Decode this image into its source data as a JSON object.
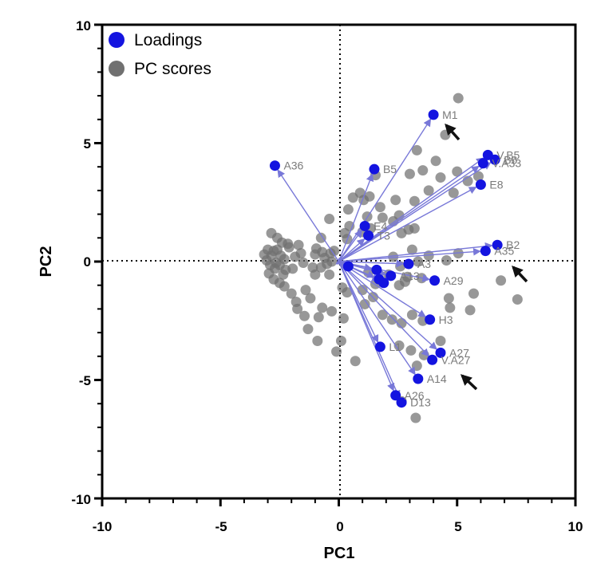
{
  "chart_data": {
    "type": "scatter",
    "title": "",
    "xlabel": "PC1",
    "ylabel": "PC2",
    "xlim": [
      -10,
      10
    ],
    "ylim": [
      -10,
      10
    ],
    "x_ticks": [
      "-10",
      "-5",
      "0",
      "5",
      "10"
    ],
    "y_ticks": [
      "10",
      "5",
      "0",
      "-5",
      "-10"
    ],
    "grid": false,
    "reference_lines": "dotted lines at x=0 and y=0",
    "legend_position": "top-left",
    "colors": {
      "loadings": "#1414e0",
      "scores": "#707070",
      "arrows": "#7878d8"
    },
    "legend": [
      {
        "name": "Loadings",
        "color": "#1414e0"
      },
      {
        "name": "PC scores",
        "color": "#707070"
      }
    ],
    "loadings": [
      {
        "label": "M1",
        "x": 4.0,
        "y": 6.2
      },
      {
        "label": "A36",
        "x": -2.7,
        "y": 4.05
      },
      {
        "label": "B5",
        "x": 1.5,
        "y": 3.9
      },
      {
        "label": "V.B5",
        "x": 6.3,
        "y": 4.5
      },
      {
        "label": "B6",
        "x": 6.6,
        "y": 4.3
      },
      {
        "label": "V.A33",
        "x": 6.1,
        "y": 4.15
      },
      {
        "label": "E8",
        "x": 6.0,
        "y": 3.25
      },
      {
        "label": "E4",
        "x": 1.1,
        "y": 1.5
      },
      {
        "label": "T3",
        "x": 1.25,
        "y": 1.1
      },
      {
        "label": "B2",
        "x": 6.7,
        "y": 0.7
      },
      {
        "label": "A35",
        "x": 6.2,
        "y": 0.45
      },
      {
        "label": "A3",
        "x": 2.95,
        "y": -0.1
      },
      {
        "label": "",
        "x": 0.4,
        "y": -0.2
      },
      {
        "label": "",
        "x": 1.6,
        "y": -0.35
      },
      {
        "label": "A13",
        "x": 2.2,
        "y": -0.6
      },
      {
        "label": "",
        "x": 1.7,
        "y": -0.75
      },
      {
        "label": "",
        "x": 1.9,
        "y": -0.9
      },
      {
        "label": "A29",
        "x": 4.05,
        "y": -0.8
      },
      {
        "label": "H3",
        "x": 3.85,
        "y": -2.45
      },
      {
        "label": "L1",
        "x": 1.75,
        "y": -3.6
      },
      {
        "label": "A27",
        "x": 4.3,
        "y": -3.85
      },
      {
        "label": "V.A27",
        "x": 3.95,
        "y": -4.15
      },
      {
        "label": "A14",
        "x": 3.35,
        "y": -4.95
      },
      {
        "label": "A26",
        "x": 2.4,
        "y": -5.65
      },
      {
        "label": "D13",
        "x": 2.65,
        "y": -5.95
      }
    ],
    "scores": [
      [
        5.05,
        6.9
      ],
      [
        4.5,
        5.35
      ],
      [
        3.3,
        4.7
      ],
      [
        4.1,
        4.25
      ],
      [
        3.55,
        3.85
      ],
      [
        3.0,
        3.7
      ],
      [
        4.3,
        3.55
      ],
      [
        5.0,
        3.8
      ],
      [
        5.9,
        3.6
      ],
      [
        5.45,
        3.4
      ],
      [
        4.85,
        2.9
      ],
      [
        3.8,
        3.0
      ],
      [
        3.2,
        2.55
      ],
      [
        2.4,
        2.6
      ],
      [
        2.55,
        1.95
      ],
      [
        1.55,
        3.65
      ],
      [
        0.9,
        2.9
      ],
      [
        1.05,
        2.6
      ],
      [
        1.3,
        2.75
      ],
      [
        1.75,
        2.3
      ],
      [
        0.6,
        2.7
      ],
      [
        0.4,
        2.2
      ],
      [
        1.85,
        1.85
      ],
      [
        1.2,
        1.9
      ],
      [
        1.35,
        1.4
      ],
      [
        2.95,
        1.35
      ],
      [
        3.2,
        1.4
      ],
      [
        2.65,
        1.2
      ],
      [
        1.0,
        1.25
      ],
      [
        0.45,
        1.5
      ],
      [
        0.25,
        1.2
      ],
      [
        0.35,
        0.95
      ],
      [
        -0.4,
        1.8
      ],
      [
        2.3,
        1.7
      ],
      [
        -0.75,
        1.0
      ],
      [
        -0.95,
        0.55
      ],
      [
        -1.0,
        0.3
      ],
      [
        -0.7,
        0.4
      ],
      [
        -0.6,
        0.15
      ],
      [
        -0.35,
        0.35
      ],
      [
        -0.2,
        0.45
      ],
      [
        -0.3,
        0.0
      ],
      [
        -0.5,
        -0.1
      ],
      [
        -0.75,
        -0.25
      ],
      [
        -1.0,
        -0.55
      ],
      [
        -1.1,
        -0.25
      ],
      [
        -0.4,
        -0.55
      ],
      [
        -1.7,
        0.7
      ],
      [
        -1.6,
        0.35
      ],
      [
        -1.85,
        0.2
      ],
      [
        -2.1,
        0.6
      ],
      [
        -1.5,
        -0.05
      ],
      [
        -1.95,
        -0.3
      ],
      [
        -2.35,
        -0.55
      ],
      [
        -2.85,
        1.2
      ],
      [
        -2.6,
        1.0
      ],
      [
        -2.4,
        0.8
      ],
      [
        -2.75,
        0.45
      ],
      [
        -2.85,
        0.25
      ],
      [
        -3.0,
        0.5
      ],
      [
        -3.05,
        0.05
      ],
      [
        -2.9,
        -0.15
      ],
      [
        -2.7,
        -0.3
      ],
      [
        -2.5,
        -0.15
      ],
      [
        -2.3,
        0.1
      ],
      [
        -2.95,
        -0.5
      ],
      [
        -2.75,
        -0.75
      ],
      [
        -2.5,
        -0.9
      ],
      [
        -2.3,
        -1.05
      ],
      [
        -2.0,
        -1.35
      ],
      [
        -1.8,
        -1.7
      ],
      [
        -1.4,
        -1.2
      ],
      [
        -1.2,
        -1.55
      ],
      [
        -1.75,
        -2.0
      ],
      [
        -1.45,
        -2.3
      ],
      [
        -0.85,
        -2.35
      ],
      [
        -1.3,
        -2.85
      ],
      [
        -0.9,
        -3.35
      ],
      [
        -0.7,
        -1.95
      ],
      [
        -0.3,
        -2.1
      ],
      [
        -2.45,
        0.25
      ],
      [
        -2.25,
        -0.35
      ],
      [
        -2.6,
        0.5
      ],
      [
        -3.15,
        0.3
      ],
      [
        -2.65,
        -0.05
      ],
      [
        -2.15,
        0.75
      ],
      [
        0.2,
        -2.4
      ],
      [
        0.1,
        -3.35
      ],
      [
        -0.1,
        -3.8
      ],
      [
        0.7,
        -4.2
      ],
      [
        0.15,
        -1.1
      ],
      [
        0.35,
        -1.3
      ],
      [
        1.0,
        -1.2
      ],
      [
        1.45,
        -1.5
      ],
      [
        1.1,
        -1.8
      ],
      [
        1.85,
        -2.25
      ],
      [
        2.25,
        -2.45
      ],
      [
        2.65,
        -2.6
      ],
      [
        3.1,
        -2.25
      ],
      [
        3.55,
        -2.5
      ],
      [
        4.3,
        -3.35
      ],
      [
        3.6,
        -3.95
      ],
      [
        3.05,
        -3.75
      ],
      [
        2.55,
        -3.55
      ],
      [
        4.65,
        -1.55
      ],
      [
        4.7,
        -1.95
      ],
      [
        5.55,
        -2.05
      ],
      [
        5.7,
        -1.35
      ],
      [
        7.55,
        -1.6
      ],
      [
        6.85,
        -0.8
      ],
      [
        3.8,
        0.25
      ],
      [
        3.1,
        0.5
      ],
      [
        4.55,
        0.05
      ],
      [
        5.05,
        0.35
      ],
      [
        2.3,
        0.2
      ],
      [
        2.6,
        -0.2
      ],
      [
        2.9,
        -0.65
      ],
      [
        3.5,
        -0.7
      ],
      [
        1.25,
        -0.45
      ],
      [
        2.55,
        -1.0
      ],
      [
        3.25,
        -6.6
      ],
      [
        2.65,
        -5.9
      ],
      [
        3.3,
        -4.4
      ],
      [
        2.1,
        -0.55
      ],
      [
        1.55,
        -0.95
      ],
      [
        2.8,
        -0.85
      ],
      [
        3.35,
        0.0
      ]
    ]
  }
}
